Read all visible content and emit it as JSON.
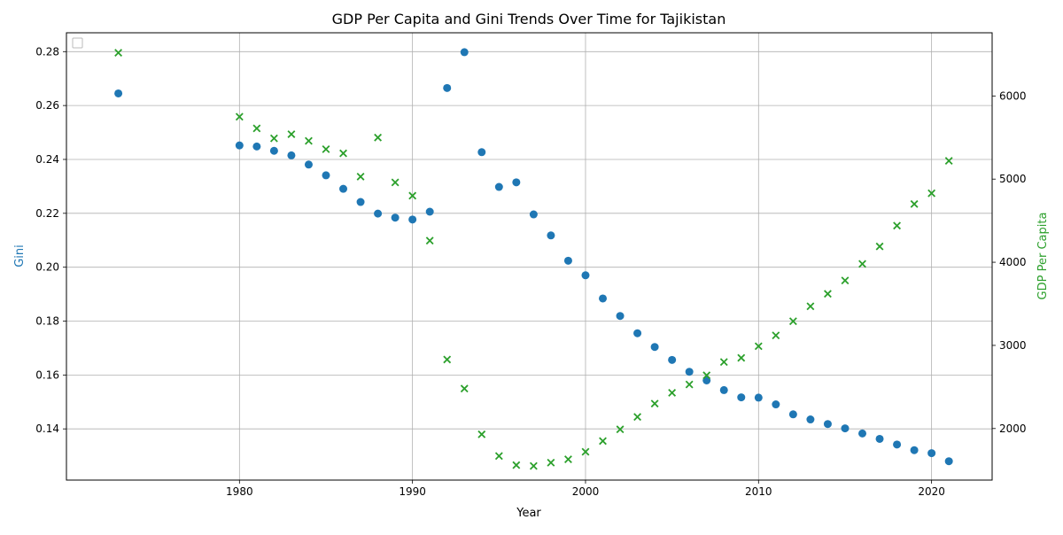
{
  "chart_data": {
    "type": "scatter",
    "title": "GDP Per Capita and Gini Trends Over Time for Tajikistan",
    "xlabel": "Year",
    "ylabel_left": "Gini",
    "ylabel_right": "GDP Per Capita",
    "xlim": [
      1970,
      2023.5
    ],
    "ylim_left": [
      0.121,
      0.287
    ],
    "ylim_right": [
      1380,
      6760
    ],
    "x_ticks": [
      1980,
      1990,
      2000,
      2010,
      2020
    ],
    "y_left_ticks": [
      0.14,
      0.16,
      0.18,
      0.2,
      0.22,
      0.24,
      0.26,
      0.28
    ],
    "y_right_ticks": [
      2000,
      3000,
      4000,
      5000,
      6000
    ],
    "grid": true,
    "legend_location": "upper-left",
    "series": [
      {
        "axis": "left",
        "color": "#1f77b4",
        "marker": "circle",
        "x": [
          1973,
          1980,
          1981,
          1982,
          1983,
          1984,
          1985,
          1986,
          1987,
          1988,
          1989,
          1990,
          1991,
          1992,
          1993,
          1994,
          1995,
          1996,
          1997,
          1998,
          1999,
          2000,
          2001,
          2002,
          2003,
          2004,
          2005,
          2006,
          2007,
          2008,
          2009,
          2010,
          2011,
          2012,
          2013,
          2014,
          2015,
          2016,
          2017,
          2018,
          2019,
          2020,
          2021
        ],
        "y": [
          0.2645,
          0.2452,
          0.2448,
          0.2432,
          0.2415,
          0.2381,
          0.2341,
          0.2291,
          0.2242,
          0.2199,
          0.2184,
          0.2177,
          0.2206,
          0.2665,
          0.2798,
          0.2427,
          0.2298,
          0.2315,
          0.2196,
          0.2118,
          0.2024,
          0.197,
          0.1884,
          0.1819,
          0.1755,
          0.1704,
          0.1656,
          0.1612,
          0.158,
          0.1544,
          0.1517,
          0.1516,
          0.1491,
          0.1454,
          0.1435,
          0.1418,
          0.1402,
          0.1383,
          0.1363,
          0.1342,
          0.1321,
          0.131,
          0.128
        ]
      },
      {
        "axis": "right",
        "color": "#2ca02c",
        "marker": "x",
        "x": [
          1973,
          1980,
          1981,
          1982,
          1983,
          1984,
          1985,
          1986,
          1987,
          1988,
          1989,
          1990,
          1991,
          1992,
          1993,
          1994,
          1995,
          1996,
          1997,
          1998,
          1999,
          2000,
          2001,
          2002,
          2003,
          2004,
          2005,
          2006,
          2007,
          2008,
          2009,
          2010,
          2011,
          2012,
          2013,
          2014,
          2015,
          2016,
          2017,
          2018,
          2019,
          2020,
          2021
        ],
        "y": [
          6520,
          5750,
          5610,
          5490,
          5540,
          5460,
          5360,
          5310,
          5030,
          5500,
          4960,
          4800,
          4260,
          2830,
          2480,
          1930,
          1670,
          1560,
          1550,
          1590,
          1630,
          1720,
          1850,
          1990,
          2140,
          2300,
          2430,
          2530,
          2640,
          2800,
          2850,
          2990,
          3120,
          3290,
          3470,
          3620,
          3780,
          3980,
          4190,
          4440,
          4700,
          4830,
          5220
        ]
      }
    ]
  }
}
